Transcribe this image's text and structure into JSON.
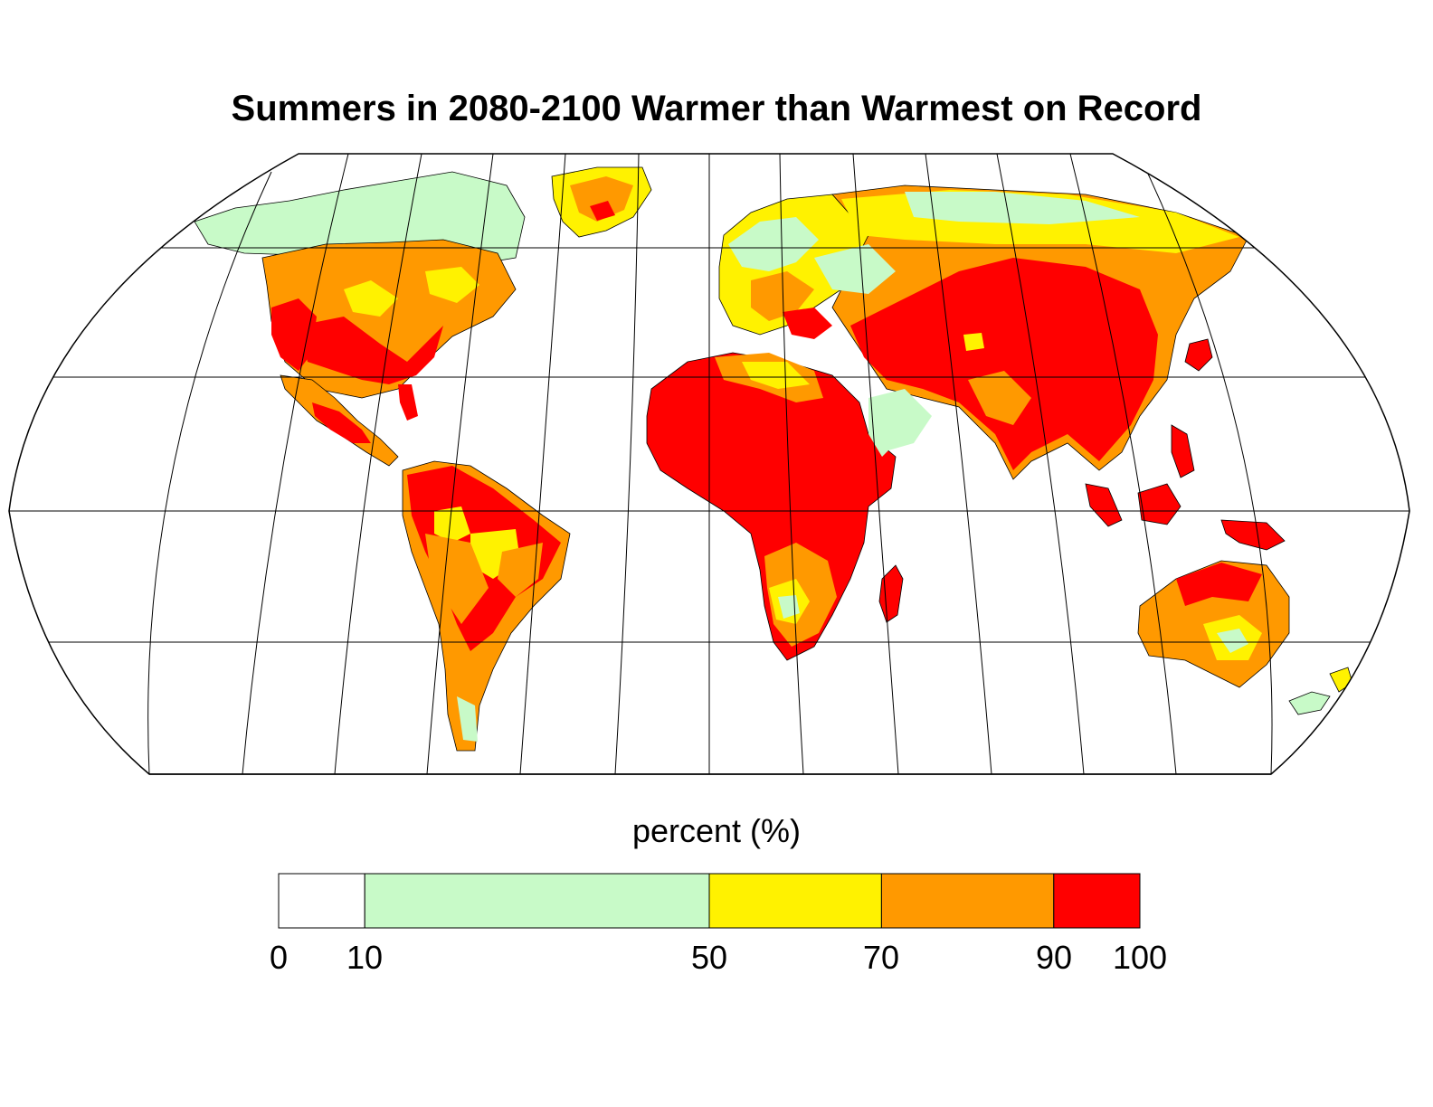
{
  "title": "Summers in 2080-2100 Warmer than Warmest on Record",
  "colorbar": {
    "label": "percent (%)",
    "ticks": [
      "0",
      "10",
      "50",
      "70",
      "90",
      "100"
    ],
    "bins": [
      {
        "from": 0,
        "to": 10,
        "color": "#ffffff"
      },
      {
        "from": 10,
        "to": 50,
        "color": "#c8fac8"
      },
      {
        "from": 50,
        "to": 70,
        "color": "#fff200"
      },
      {
        "from": 70,
        "to": 90,
        "color": "#ff9900"
      },
      {
        "from": 90,
        "to": 100,
        "color": "#ff0000"
      }
    ]
  },
  "map": {
    "projection": "robinson",
    "graticule": true
  }
}
